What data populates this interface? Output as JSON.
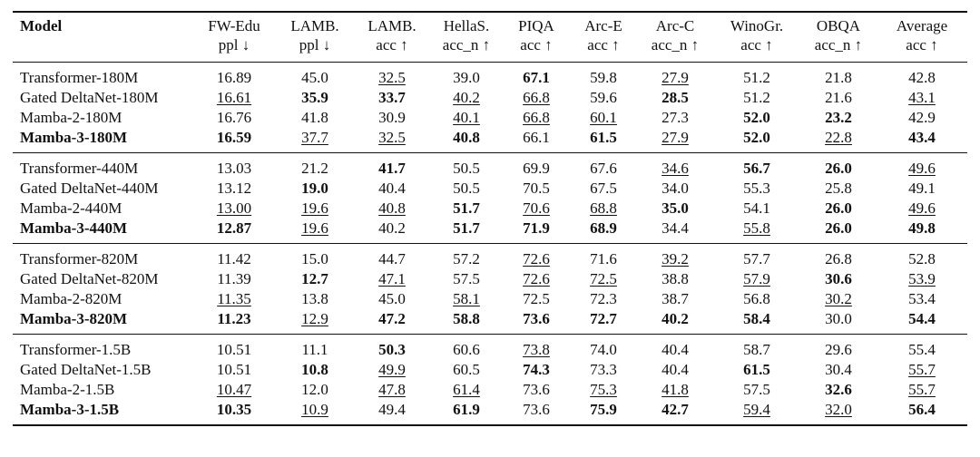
{
  "table": {
    "headers": [
      {
        "line1": "Model",
        "line2": ""
      },
      {
        "line1": "FW-Edu",
        "line2": "ppl ↓"
      },
      {
        "line1": "LAMB.",
        "line2": "ppl ↓"
      },
      {
        "line1": "LAMB.",
        "line2": "acc ↑"
      },
      {
        "line1": "HellaS.",
        "line2": "acc_n ↑"
      },
      {
        "line1": "PIQA",
        "line2": "acc ↑"
      },
      {
        "line1": "Arc-E",
        "line2": "acc ↑"
      },
      {
        "line1": "Arc-C",
        "line2": "acc_n ↑"
      },
      {
        "line1": "WinoGr.",
        "line2": "acc ↑"
      },
      {
        "line1": "OBQA",
        "line2": "acc_n ↑"
      },
      {
        "line1": "Average",
        "line2": "acc ↑"
      }
    ],
    "groups": [
      {
        "rows": [
          {
            "model": "Transformer-180M",
            "bold_name": false,
            "cells": [
              {
                "v": "16.89"
              },
              {
                "v": "45.0"
              },
              {
                "v": "32.5",
                "u": true
              },
              {
                "v": "39.0"
              },
              {
                "v": "67.1",
                "b": true
              },
              {
                "v": "59.8"
              },
              {
                "v": "27.9",
                "u": true
              },
              {
                "v": "51.2"
              },
              {
                "v": "21.8"
              },
              {
                "v": "42.8"
              }
            ]
          },
          {
            "model": "Gated DeltaNet-180M",
            "bold_name": false,
            "cells": [
              {
                "v": "16.61",
                "u": true
              },
              {
                "v": "35.9",
                "b": true
              },
              {
                "v": "33.7",
                "b": true
              },
              {
                "v": "40.2",
                "u": true
              },
              {
                "v": "66.8",
                "u": true
              },
              {
                "v": "59.6"
              },
              {
                "v": "28.5",
                "b": true
              },
              {
                "v": "51.2"
              },
              {
                "v": "21.6"
              },
              {
                "v": "43.1",
                "u": true
              }
            ]
          },
          {
            "model": "Mamba-2-180M",
            "bold_name": false,
            "cells": [
              {
                "v": "16.76"
              },
              {
                "v": "41.8"
              },
              {
                "v": "30.9"
              },
              {
                "v": "40.1",
                "u": true
              },
              {
                "v": "66.8",
                "u": true
              },
              {
                "v": "60.1",
                "u": true
              },
              {
                "v": "27.3"
              },
              {
                "v": "52.0",
                "b": true
              },
              {
                "v": "23.2",
                "b": true
              },
              {
                "v": "42.9"
              }
            ]
          },
          {
            "model": "Mamba-3-180M",
            "bold_name": true,
            "cells": [
              {
                "v": "16.59",
                "b": true
              },
              {
                "v": "37.7",
                "u": true
              },
              {
                "v": "32.5",
                "u": true
              },
              {
                "v": "40.8",
                "b": true
              },
              {
                "v": "66.1"
              },
              {
                "v": "61.5",
                "b": true
              },
              {
                "v": "27.9",
                "u": true
              },
              {
                "v": "52.0",
                "b": true
              },
              {
                "v": "22.8",
                "u": true
              },
              {
                "v": "43.4",
                "b": true
              }
            ]
          }
        ]
      },
      {
        "rows": [
          {
            "model": "Transformer-440M",
            "bold_name": false,
            "cells": [
              {
                "v": "13.03"
              },
              {
                "v": "21.2"
              },
              {
                "v": "41.7",
                "b": true
              },
              {
                "v": "50.5"
              },
              {
                "v": "69.9"
              },
              {
                "v": "67.6"
              },
              {
                "v": "34.6",
                "u": true
              },
              {
                "v": "56.7",
                "b": true
              },
              {
                "v": "26.0",
                "b": true
              },
              {
                "v": "49.6",
                "u": true
              }
            ]
          },
          {
            "model": "Gated DeltaNet-440M",
            "bold_name": false,
            "cells": [
              {
                "v": "13.12"
              },
              {
                "v": "19.0",
                "b": true
              },
              {
                "v": "40.4"
              },
              {
                "v": "50.5"
              },
              {
                "v": "70.5"
              },
              {
                "v": "67.5"
              },
              {
                "v": "34.0"
              },
              {
                "v": "55.3"
              },
              {
                "v": "25.8"
              },
              {
                "v": "49.1"
              }
            ]
          },
          {
            "model": "Mamba-2-440M",
            "bold_name": false,
            "cells": [
              {
                "v": "13.00",
                "u": true
              },
              {
                "v": "19.6",
                "u": true
              },
              {
                "v": "40.8",
                "u": true
              },
              {
                "v": "51.7",
                "b": true
              },
              {
                "v": "70.6",
                "u": true
              },
              {
                "v": "68.8",
                "u": true
              },
              {
                "v": "35.0",
                "b": true
              },
              {
                "v": "54.1"
              },
              {
                "v": "26.0",
                "b": true
              },
              {
                "v": "49.6",
                "u": true
              }
            ]
          },
          {
            "model": "Mamba-3-440M",
            "bold_name": true,
            "cells": [
              {
                "v": "12.87",
                "b": true
              },
              {
                "v": "19.6",
                "u": true
              },
              {
                "v": "40.2"
              },
              {
                "v": "51.7",
                "b": true
              },
              {
                "v": "71.9",
                "b": true
              },
              {
                "v": "68.9",
                "b": true
              },
              {
                "v": "34.4"
              },
              {
                "v": "55.8",
                "u": true
              },
              {
                "v": "26.0",
                "b": true
              },
              {
                "v": "49.8",
                "b": true
              }
            ]
          }
        ]
      },
      {
        "rows": [
          {
            "model": "Transformer-820M",
            "bold_name": false,
            "cells": [
              {
                "v": "11.42"
              },
              {
                "v": "15.0"
              },
              {
                "v": "44.7"
              },
              {
                "v": "57.2"
              },
              {
                "v": "72.6",
                "u": true
              },
              {
                "v": "71.6"
              },
              {
                "v": "39.2",
                "u": true
              },
              {
                "v": "57.7"
              },
              {
                "v": "26.8"
              },
              {
                "v": "52.8"
              }
            ]
          },
          {
            "model": "Gated DeltaNet-820M",
            "bold_name": false,
            "cells": [
              {
                "v": "11.39"
              },
              {
                "v": "12.7",
                "b": true
              },
              {
                "v": "47.1",
                "u": true
              },
              {
                "v": "57.5"
              },
              {
                "v": "72.6",
                "u": true
              },
              {
                "v": "72.5",
                "u": true
              },
              {
                "v": "38.8"
              },
              {
                "v": "57.9",
                "u": true
              },
              {
                "v": "30.6",
                "b": true
              },
              {
                "v": "53.9",
                "u": true
              }
            ]
          },
          {
            "model": "Mamba-2-820M",
            "bold_name": false,
            "cells": [
              {
                "v": "11.35",
                "u": true
              },
              {
                "v": "13.8"
              },
              {
                "v": "45.0"
              },
              {
                "v": "58.1",
                "u": true
              },
              {
                "v": "72.5"
              },
              {
                "v": "72.3"
              },
              {
                "v": "38.7"
              },
              {
                "v": "56.8"
              },
              {
                "v": "30.2",
                "u": true
              },
              {
                "v": "53.4"
              }
            ]
          },
          {
            "model": "Mamba-3-820M",
            "bold_name": true,
            "cells": [
              {
                "v": "11.23",
                "b": true
              },
              {
                "v": "12.9",
                "u": true
              },
              {
                "v": "47.2",
                "b": true
              },
              {
                "v": "58.8",
                "b": true
              },
              {
                "v": "73.6",
                "b": true
              },
              {
                "v": "72.7",
                "b": true
              },
              {
                "v": "40.2",
                "b": true
              },
              {
                "v": "58.4",
                "b": true
              },
              {
                "v": "30.0"
              },
              {
                "v": "54.4",
                "b": true
              }
            ]
          }
        ]
      },
      {
        "rows": [
          {
            "model": "Transformer-1.5B",
            "bold_name": false,
            "cells": [
              {
                "v": "10.51"
              },
              {
                "v": "11.1"
              },
              {
                "v": "50.3",
                "b": true
              },
              {
                "v": "60.6"
              },
              {
                "v": "73.8",
                "u": true
              },
              {
                "v": "74.0"
              },
              {
                "v": "40.4"
              },
              {
                "v": "58.7"
              },
              {
                "v": "29.6"
              },
              {
                "v": "55.4"
              }
            ]
          },
          {
            "model": "Gated DeltaNet-1.5B",
            "bold_name": false,
            "cells": [
              {
                "v": "10.51"
              },
              {
                "v": "10.8",
                "b": true
              },
              {
                "v": "49.9",
                "u": true
              },
              {
                "v": "60.5"
              },
              {
                "v": "74.3",
                "b": true
              },
              {
                "v": "73.3"
              },
              {
                "v": "40.4"
              },
              {
                "v": "61.5",
                "b": true
              },
              {
                "v": "30.4"
              },
              {
                "v": "55.7",
                "u": true
              }
            ]
          },
          {
            "model": "Mamba-2-1.5B",
            "bold_name": false,
            "cells": [
              {
                "v": "10.47",
                "u": true
              },
              {
                "v": "12.0"
              },
              {
                "v": "47.8",
                "u": true
              },
              {
                "v": "61.4",
                "u": true
              },
              {
                "v": "73.6"
              },
              {
                "v": "75.3",
                "u": true
              },
              {
                "v": "41.8",
                "u": true
              },
              {
                "v": "57.5"
              },
              {
                "v": "32.6",
                "b": true
              },
              {
                "v": "55.7",
                "u": true
              }
            ]
          },
          {
            "model": "Mamba-3-1.5B",
            "bold_name": true,
            "cells": [
              {
                "v": "10.35",
                "b": true
              },
              {
                "v": "10.9",
                "u": true
              },
              {
                "v": "49.4"
              },
              {
                "v": "61.9",
                "b": true
              },
              {
                "v": "73.6"
              },
              {
                "v": "75.9",
                "b": true
              },
              {
                "v": "42.7",
                "b": true
              },
              {
                "v": "59.4",
                "u": true
              },
              {
                "v": "32.0",
                "u": true
              },
              {
                "v": "56.4",
                "b": true
              }
            ]
          }
        ]
      }
    ]
  }
}
